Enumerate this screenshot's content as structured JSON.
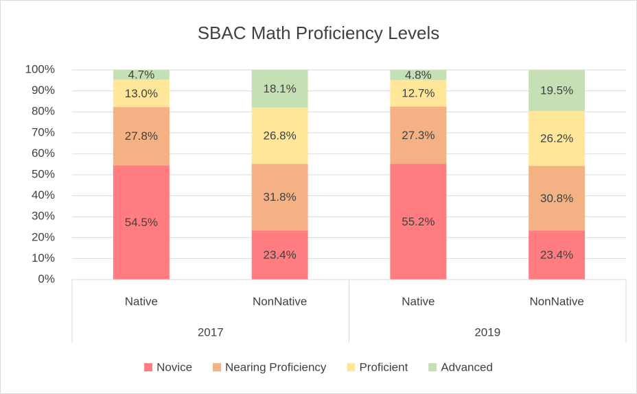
{
  "chart_data": {
    "type": "stacked_bar",
    "title": "SBAC Math Proficiency Levels",
    "groups": [
      {
        "label": "2017",
        "categories": [
          "Native",
          "NonNative"
        ]
      },
      {
        "label": "2019",
        "categories": [
          "Native",
          "NonNative"
        ]
      }
    ],
    "series": [
      {
        "name": "Novice",
        "color": "#ff7c80",
        "values": [
          54.5,
          23.4,
          55.2,
          23.4
        ],
        "value_labels": [
          "54.5%",
          "23.4%",
          "55.2%",
          "23.4%"
        ]
      },
      {
        "name": "Nearing Proficiency",
        "color": "#f4b183",
        "values": [
          27.8,
          31.8,
          27.3,
          30.8
        ],
        "value_labels": [
          "27.8%",
          "31.8%",
          "27.3%",
          "30.8%"
        ]
      },
      {
        "name": "Proficient",
        "color": "#ffe699",
        "values": [
          13.0,
          26.8,
          12.7,
          26.2
        ],
        "value_labels": [
          "13.0%",
          "26.8%",
          "12.7%",
          "26.2%"
        ]
      },
      {
        "name": "Advanced",
        "color": "#c5e0b4",
        "values": [
          4.7,
          18.1,
          4.8,
          19.5
        ],
        "value_labels": [
          "4.7%",
          "18.1%",
          "4.8%",
          "19.5%"
        ]
      }
    ],
    "ylim": [
      0,
      100
    ],
    "yticks": [
      {
        "value": 0,
        "label": "0%"
      },
      {
        "value": 10,
        "label": "10%"
      },
      {
        "value": 20,
        "label": "20%"
      },
      {
        "value": 30,
        "label": "30%"
      },
      {
        "value": 40,
        "label": "40%"
      },
      {
        "value": 50,
        "label": "50%"
      },
      {
        "value": 60,
        "label": "60%"
      },
      {
        "value": 70,
        "label": "70%"
      },
      {
        "value": 80,
        "label": "80%"
      },
      {
        "value": 90,
        "label": "90%"
      },
      {
        "value": 100,
        "label": "100%"
      }
    ],
    "grid": true,
    "legend": "bottom"
  }
}
